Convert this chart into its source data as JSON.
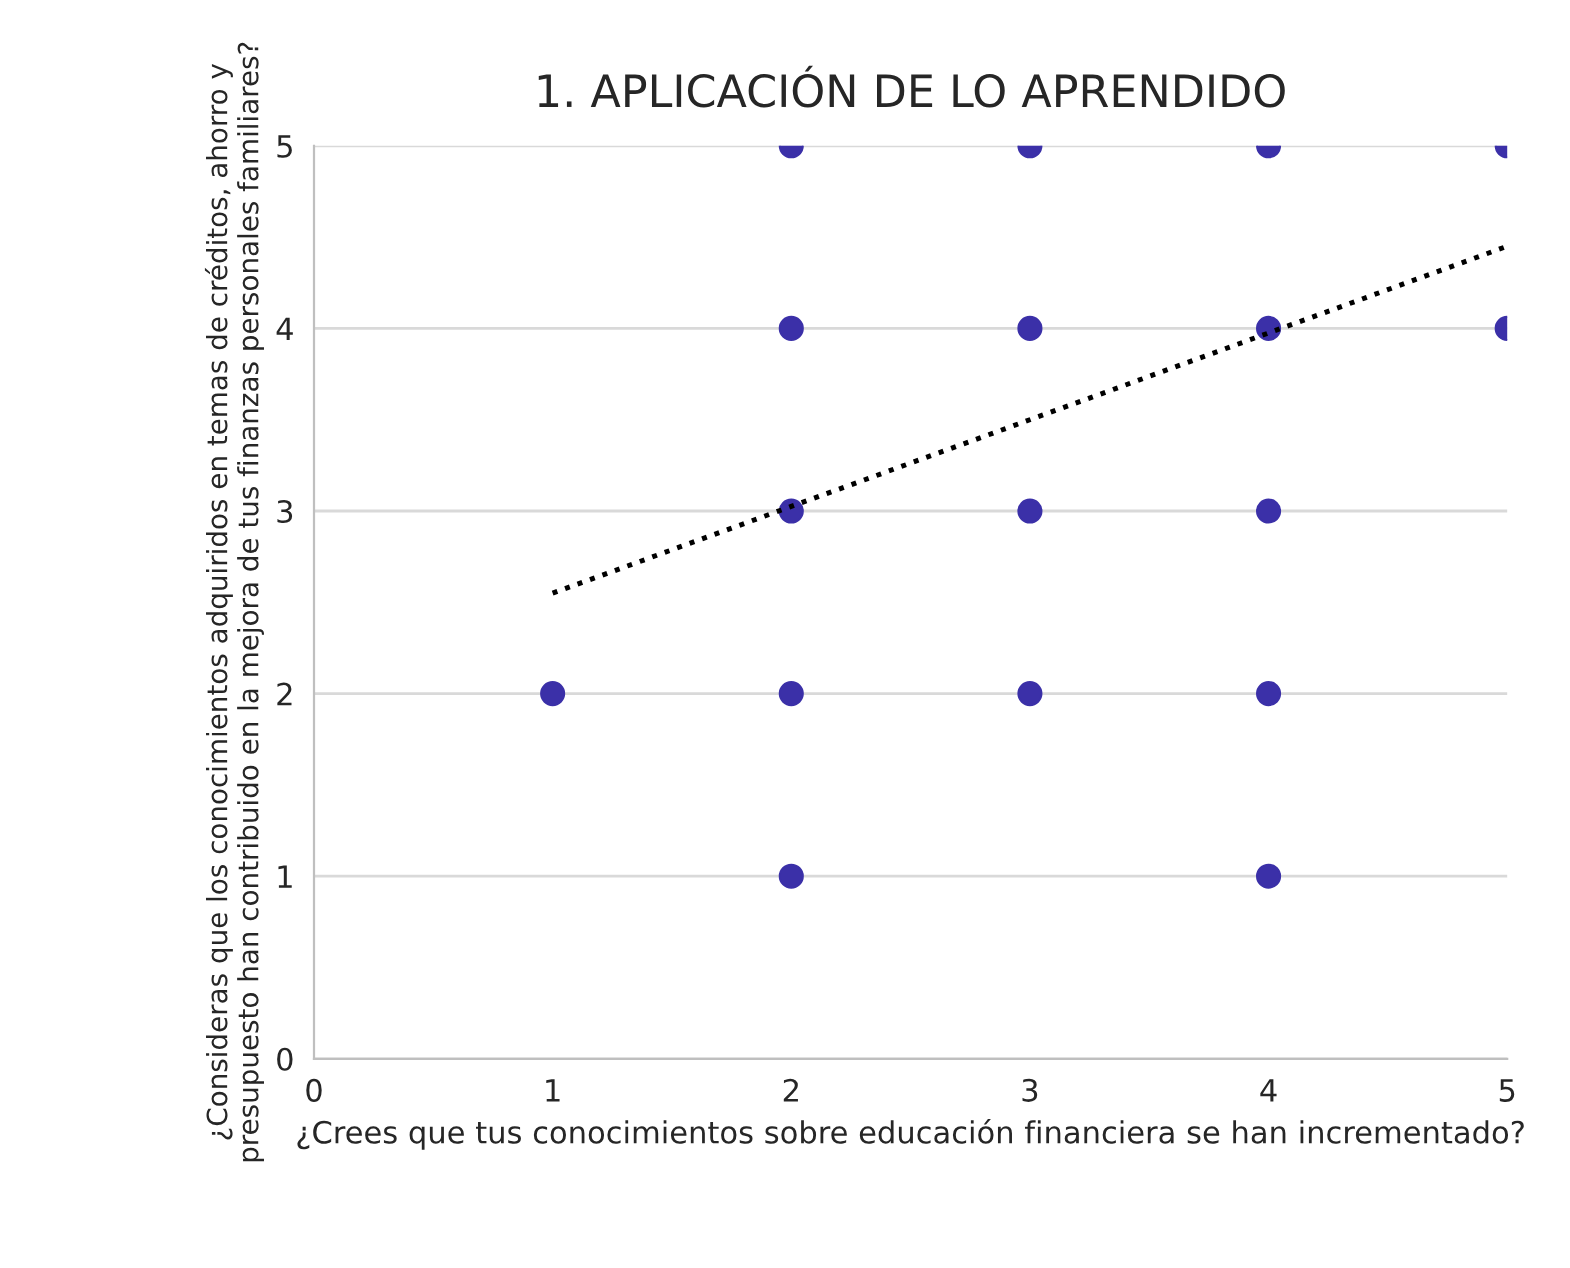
{
  "chart_data": {
    "type": "scatter",
    "title": "1. APLICACIÓN DE LO APRENDIDO",
    "xlabel": "¿Crees que tus conocimientos sobre educación financiera se han incrementado?",
    "ylabel": "¿Consideras que los conocimientos adquiridos en temas de créditos, ahorro y presupuesto han contribuido en la mejora de tus finanzas personales familiares?",
    "xlim": [
      0,
      5
    ],
    "ylim": [
      0,
      5
    ],
    "xticks": [
      0,
      1,
      2,
      3,
      4,
      5
    ],
    "yticks": [
      0,
      1,
      2,
      3,
      4,
      5
    ],
    "grid": "y",
    "marker": "circle",
    "series": [
      {
        "type": "scatter",
        "color": "#3b30a8",
        "x": [
          1,
          2,
          2,
          2,
          2,
          2,
          3,
          3,
          3,
          3,
          4,
          4,
          4,
          4,
          4,
          5,
          5
        ],
        "values": [
          2,
          5,
          4,
          3,
          2,
          1,
          5,
          4,
          3,
          2,
          5,
          4,
          3,
          2,
          1,
          5,
          4
        ]
      },
      {
        "type": "line",
        "color": "#000000",
        "marker": "none",
        "line_style": "dotted",
        "x": [
          1,
          5
        ],
        "values": [
          2.55,
          4.45
        ]
      }
    ]
  }
}
